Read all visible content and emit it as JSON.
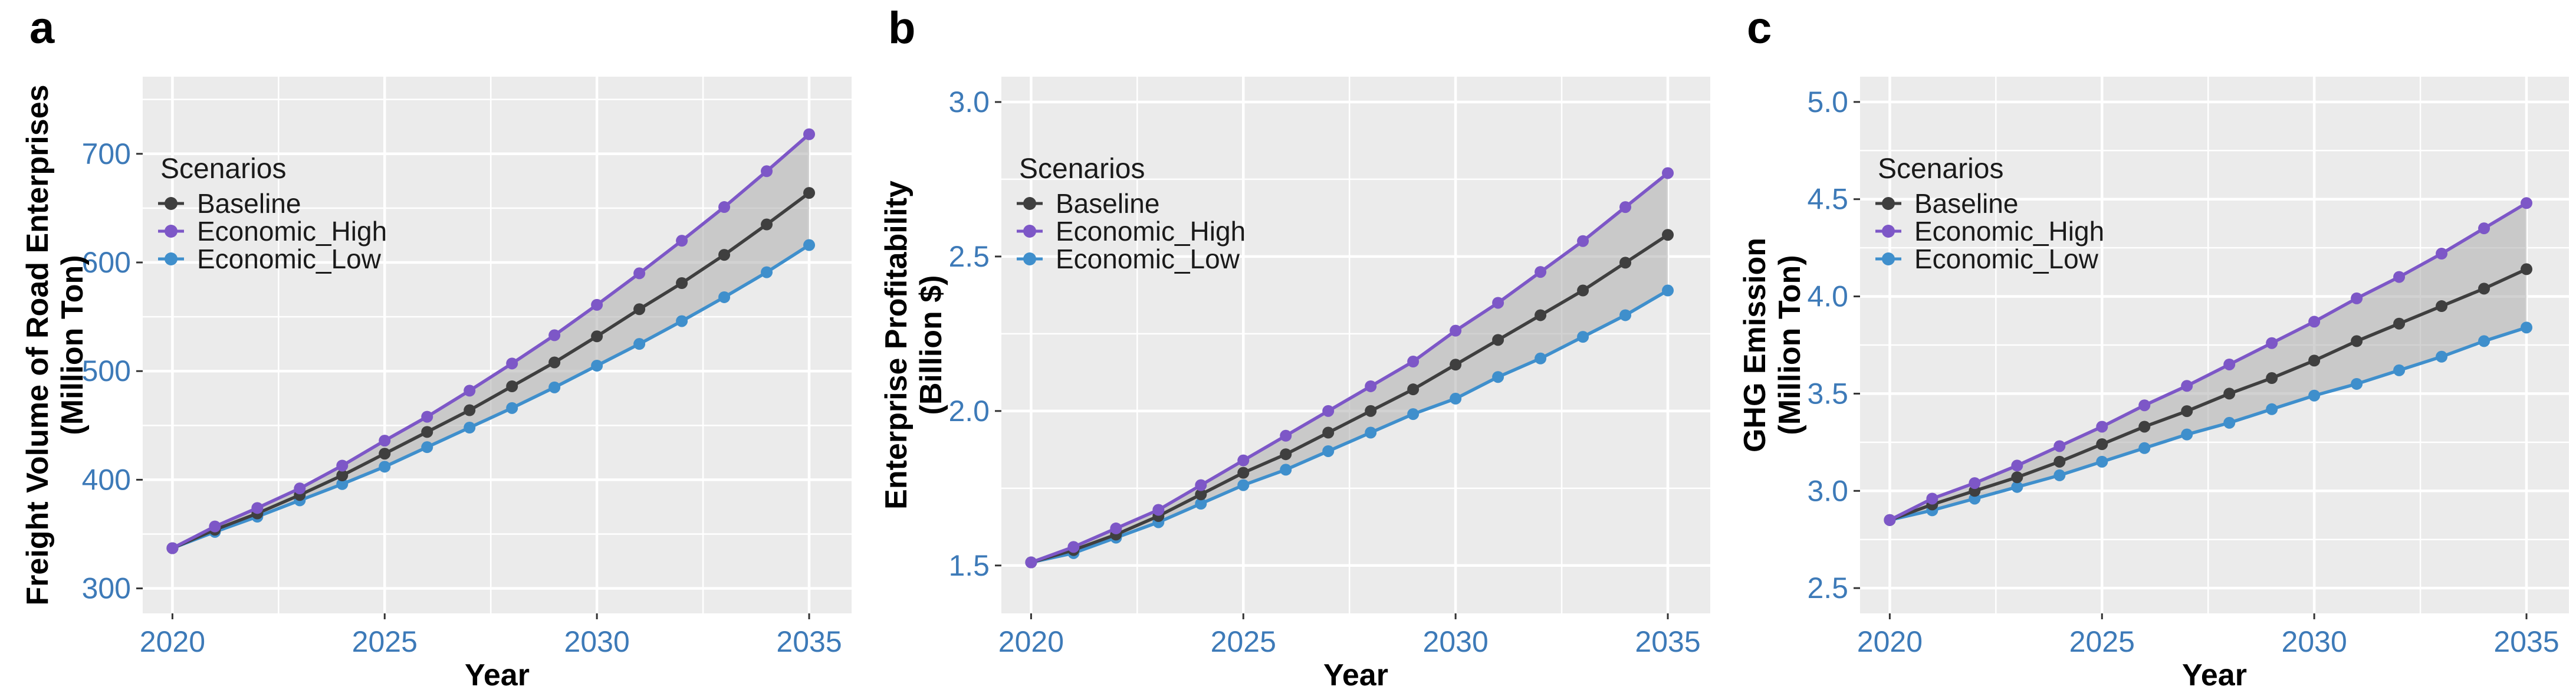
{
  "figure": {
    "background": "#FFFFFF",
    "panel_background": "#EBEBEB",
    "grid_color": "#FFFFFF",
    "ribbon_color": "#ADADAD",
    "ribbon_opacity": 0.55,
    "tick_label_color": "#3D7AB8",
    "tick_mark_color": "#333333",
    "axis_title_color": "#000000",
    "legend_text_color": "#1A1A1A",
    "legend_title": "Scenarios"
  },
  "series_meta": [
    {
      "name": "Baseline",
      "color": "#3F3F3F"
    },
    {
      "name": "Economic_High",
      "color": "#7D57C7"
    },
    {
      "name": "Economic_Low",
      "color": "#3F8FCC"
    }
  ],
  "chart_data": [
    {
      "panel_label": "a",
      "type": "line",
      "title": "",
      "xlabel": "Year",
      "ylabel_lines": [
        "Freight Volume of Road Enterprises",
        "(Million Ton)"
      ],
      "x": [
        2020,
        2021,
        2022,
        2023,
        2024,
        2025,
        2026,
        2027,
        2028,
        2029,
        2030,
        2031,
        2032,
        2033,
        2034,
        2035
      ],
      "series": [
        {
          "name": "Baseline",
          "values": [
            337,
            354,
            369,
            386,
            404,
            424,
            444,
            464,
            486,
            508,
            532,
            557,
            581,
            607,
            635,
            664
          ]
        },
        {
          "name": "Economic_High",
          "values": [
            337,
            357,
            374,
            392,
            413,
            436,
            458,
            482,
            507,
            533,
            561,
            590,
            620,
            651,
            684,
            718
          ]
        },
        {
          "name": "Economic_Low",
          "values": [
            337,
            352,
            366,
            381,
            396,
            412,
            430,
            448,
            466,
            485,
            505,
            525,
            546,
            568,
            591,
            616
          ]
        }
      ],
      "ribbon_between": [
        "Economic_High",
        "Economic_Low"
      ],
      "xlim": [
        2019.3,
        2036.0
      ],
      "ylim": [
        277,
        771
      ],
      "x_ticks": [
        2020,
        2025,
        2030,
        2035
      ],
      "x_tick_labels": [
        "2020",
        "2025",
        "2030",
        "2035"
      ],
      "x_minor": [
        2022.5,
        2027.5,
        2032.5
      ],
      "y_ticks": [
        300,
        400,
        500,
        600,
        700
      ],
      "y_tick_labels": [
        "300",
        "400",
        "500",
        "600",
        "700"
      ],
      "y_minor": [
        350,
        450,
        550,
        650,
        750
      ],
      "grid": true,
      "legend_position": "inside-top-left"
    },
    {
      "panel_label": "b",
      "type": "line",
      "title": "",
      "xlabel": "Year",
      "ylabel_lines": [
        "Enterprise Profitability",
        "(Billion $)"
      ],
      "x": [
        2020,
        2021,
        2022,
        2023,
        2024,
        2025,
        2026,
        2027,
        2028,
        2029,
        2030,
        2031,
        2032,
        2033,
        2034,
        2035
      ],
      "series": [
        {
          "name": "Baseline",
          "values": [
            1.51,
            1.55,
            1.6,
            1.66,
            1.73,
            1.8,
            1.86,
            1.93,
            2.0,
            2.07,
            2.15,
            2.23,
            2.31,
            2.39,
            2.48,
            2.57
          ]
        },
        {
          "name": "Economic_High",
          "values": [
            1.51,
            1.56,
            1.62,
            1.68,
            1.76,
            1.84,
            1.92,
            2.0,
            2.08,
            2.16,
            2.26,
            2.35,
            2.45,
            2.55,
            2.66,
            2.77
          ]
        },
        {
          "name": "Economic_Low",
          "values": [
            1.51,
            1.54,
            1.59,
            1.64,
            1.7,
            1.76,
            1.81,
            1.87,
            1.93,
            1.99,
            2.04,
            2.11,
            2.17,
            2.24,
            2.31,
            2.39
          ]
        }
      ],
      "ribbon_between": [
        "Economic_High",
        "Economic_Low"
      ],
      "xlim": [
        2019.3,
        2036.0
      ],
      "ylim": [
        1.345,
        3.082
      ],
      "x_ticks": [
        2020,
        2025,
        2030,
        2035
      ],
      "x_tick_labels": [
        "2020",
        "2025",
        "2030",
        "2035"
      ],
      "x_minor": [
        2022.5,
        2027.5,
        2032.5
      ],
      "y_ticks": [
        1.5,
        2.0,
        2.5,
        3.0
      ],
      "y_tick_labels": [
        "1.5",
        "2.0",
        "2.5",
        "3.0"
      ],
      "y_minor": [
        1.75,
        2.25,
        2.75
      ],
      "grid": true,
      "legend_position": "inside-top-left"
    },
    {
      "panel_label": "c",
      "type": "line",
      "title": "",
      "xlabel": "Year",
      "ylabel_lines": [
        "GHG Emission",
        "(Million Ton)"
      ],
      "x": [
        2020,
        2021,
        2022,
        2023,
        2024,
        2025,
        2026,
        2027,
        2028,
        2029,
        2030,
        2031,
        2032,
        2033,
        2034,
        2035
      ],
      "series": [
        {
          "name": "Baseline",
          "values": [
            2.85,
            2.93,
            3.0,
            3.07,
            3.15,
            3.24,
            3.33,
            3.41,
            3.5,
            3.58,
            3.67,
            3.77,
            3.86,
            3.95,
            4.04,
            4.14
          ]
        },
        {
          "name": "Economic_High",
          "values": [
            2.85,
            2.96,
            3.04,
            3.13,
            3.23,
            3.33,
            3.44,
            3.54,
            3.65,
            3.76,
            3.87,
            3.99,
            4.1,
            4.22,
            4.35,
            4.48
          ]
        },
        {
          "name": "Economic_Low",
          "values": [
            2.85,
            2.9,
            2.96,
            3.02,
            3.08,
            3.15,
            3.22,
            3.29,
            3.35,
            3.42,
            3.49,
            3.55,
            3.62,
            3.69,
            3.77,
            3.84
          ]
        }
      ],
      "ribbon_between": [
        "Economic_High",
        "Economic_Low"
      ],
      "xlim": [
        2019.3,
        2036.0
      ],
      "ylim": [
        2.37,
        5.13
      ],
      "x_ticks": [
        2020,
        2025,
        2030,
        2035
      ],
      "x_tick_labels": [
        "2020",
        "2025",
        "2030",
        "2035"
      ],
      "x_minor": [
        2022.5,
        2027.5,
        2032.5
      ],
      "y_ticks": [
        2.5,
        3.0,
        3.5,
        4.0,
        4.5,
        5.0
      ],
      "y_tick_labels": [
        "2.5",
        "3.0",
        "3.5",
        "4.0",
        "4.5",
        "5.0"
      ],
      "y_minor": [
        2.75,
        3.25,
        3.75,
        4.25,
        4.75
      ],
      "grid": true,
      "legend_position": "inside-top-left"
    }
  ]
}
